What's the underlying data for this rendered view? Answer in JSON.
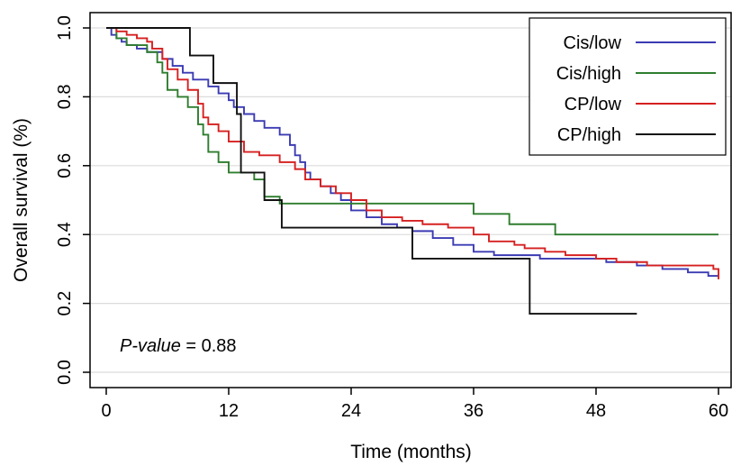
{
  "chart_data": {
    "type": "line",
    "xlabel": "Time (months)",
    "ylabel": "Overall survival (%)",
    "xlim": [
      0,
      60
    ],
    "ylim": [
      0,
      1
    ],
    "xticks": [
      0,
      12,
      24,
      36,
      48,
      60
    ],
    "yticks": [
      0.0,
      0.2,
      0.4,
      0.6,
      0.8,
      1.0
    ],
    "xtick_labels": [
      "0",
      "12",
      "24",
      "36",
      "48",
      "60"
    ],
    "ytick_labels": [
      "0.0",
      "0.2",
      "0.4",
      "0.6",
      "0.8",
      "1.0"
    ],
    "grid": "horizontal",
    "legend_position": "top-right",
    "annotation": {
      "italic": "P-value",
      "rest": " = 0.88"
    },
    "series": [
      {
        "name": "Cis/low",
        "color": "#3b3bb3",
        "x": [
          0,
          0.5,
          1.0,
          1.5,
          2.0,
          3.0,
          4.0,
          5.5,
          6.5,
          7.5,
          8.5,
          10.0,
          11.0,
          12.0,
          12.5,
          13.5,
          14.5,
          15.5,
          17.0,
          18.0,
          18.5,
          19.0,
          19.5,
          20.0,
          21.0,
          22.0,
          23.0,
          24.0,
          25.5,
          27.0,
          28.5,
          30.0,
          32.0,
          34.0,
          36.0,
          38.0,
          40.0,
          42.5,
          45.0,
          49.0,
          52.0,
          54.5,
          57.0,
          59.0,
          60.0
        ],
        "y": [
          1.0,
          0.98,
          0.97,
          0.96,
          0.95,
          0.94,
          0.93,
          0.91,
          0.89,
          0.87,
          0.85,
          0.83,
          0.81,
          0.79,
          0.77,
          0.75,
          0.73,
          0.71,
          0.69,
          0.66,
          0.63,
          0.61,
          0.58,
          0.56,
          0.54,
          0.52,
          0.5,
          0.47,
          0.45,
          0.43,
          0.42,
          0.41,
          0.39,
          0.37,
          0.35,
          0.34,
          0.34,
          0.33,
          0.33,
          0.32,
          0.31,
          0.3,
          0.29,
          0.28,
          0.28
        ]
      },
      {
        "name": "Cis/high",
        "color": "#2e7d2e",
        "x": [
          0,
          1.0,
          2.0,
          4.0,
          5.0,
          5.5,
          6.0,
          7.0,
          8.0,
          9.0,
          9.5,
          10.0,
          11.0,
          12.0,
          14.5,
          15.5,
          17.0,
          36.0,
          39.5,
          44.0,
          60.0
        ],
        "y": [
          1.0,
          0.97,
          0.95,
          0.93,
          0.9,
          0.87,
          0.82,
          0.8,
          0.77,
          0.72,
          0.69,
          0.64,
          0.61,
          0.58,
          0.56,
          0.51,
          0.49,
          0.46,
          0.43,
          0.4,
          0.4
        ]
      },
      {
        "name": "CP/low",
        "color": "#d62020",
        "x": [
          0,
          1.0,
          2.0,
          3.0,
          4.0,
          4.5,
          5.5,
          6.0,
          7.0,
          8.0,
          9.0,
          9.5,
          10.0,
          11.0,
          12.0,
          13.5,
          15.0,
          17.0,
          18.5,
          19.5,
          21.0,
          22.5,
          24.0,
          25.5,
          27.0,
          29.0,
          31.0,
          33.5,
          36.0,
          37.5,
          40.0,
          41.0,
          43.0,
          45.0,
          48.0,
          50.0,
          53.0,
          55.0,
          59.5,
          60.0
        ],
        "y": [
          1.0,
          0.99,
          0.98,
          0.97,
          0.96,
          0.94,
          0.91,
          0.88,
          0.85,
          0.82,
          0.78,
          0.74,
          0.72,
          0.7,
          0.67,
          0.64,
          0.63,
          0.61,
          0.59,
          0.56,
          0.54,
          0.52,
          0.5,
          0.47,
          0.45,
          0.44,
          0.43,
          0.42,
          0.4,
          0.38,
          0.37,
          0.36,
          0.35,
          0.34,
          0.33,
          0.32,
          0.31,
          0.31,
          0.3,
          0.27
        ]
      },
      {
        "name": "CP/high",
        "color": "#111111",
        "x": [
          0,
          8.2,
          10.5,
          12.8,
          13.2,
          15.5,
          17.2,
          30.0,
          41.5,
          52.0
        ],
        "y": [
          1.0,
          0.92,
          0.84,
          0.75,
          0.58,
          0.5,
          0.42,
          0.33,
          0.17,
          0.17
        ]
      }
    ]
  }
}
